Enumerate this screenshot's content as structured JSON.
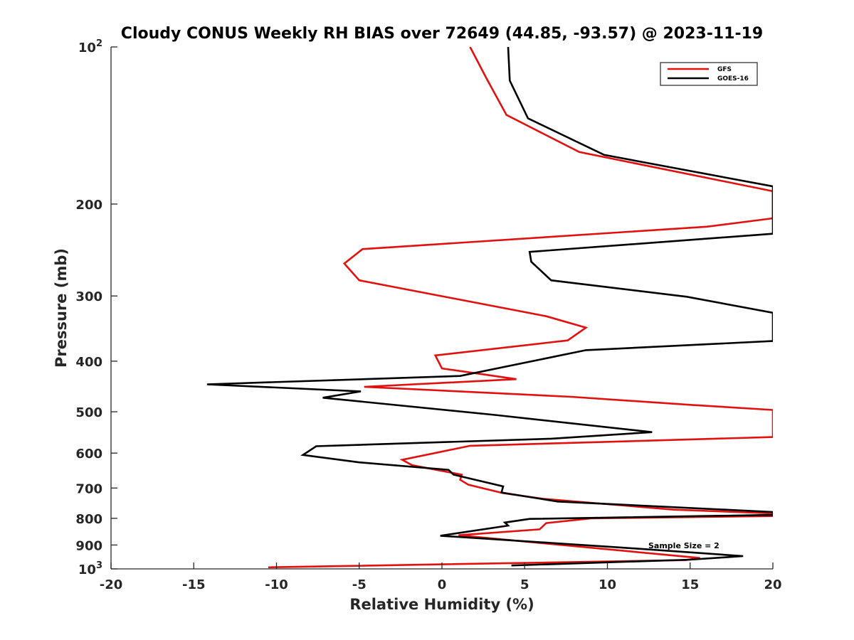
{
  "chart_data": {
    "type": "line",
    "title": "Cloudy CONUS Weekly RH BIAS over 72649 (44.85, -93.57) @ 2023-11-19",
    "xlabel": "Relative Humidity (%)",
    "ylabel": "Pressure (mb)",
    "xlim": [
      -20,
      20
    ],
    "ylim": [
      100,
      1000
    ],
    "y_scale": "log",
    "y_reversed": true,
    "grid": false,
    "legend_position": "top-right",
    "x_ticks": [
      "-20",
      "-15",
      "-10",
      "-5",
      "0",
      "5",
      "10",
      "15",
      "20"
    ],
    "y_ticks": [
      {
        "value": 100,
        "label": "10",
        "sup": "2"
      },
      {
        "value": 200,
        "label": "200",
        "sup": ""
      },
      {
        "value": 300,
        "label": "300",
        "sup": ""
      },
      {
        "value": 400,
        "label": "400",
        "sup": ""
      },
      {
        "value": 500,
        "label": "500",
        "sup": ""
      },
      {
        "value": 600,
        "label": "600",
        "sup": ""
      },
      {
        "value": 700,
        "label": "700",
        "sup": ""
      },
      {
        "value": 800,
        "label": "800",
        "sup": ""
      },
      {
        "value": 900,
        "label": "900",
        "sup": ""
      },
      {
        "value": 1000,
        "label": "10",
        "sup": "3"
      }
    ],
    "annotation": "Sample Size = 2",
    "series": [
      {
        "name": "GFS",
        "color": "#e0110f",
        "points": [
          [
            1.7,
            100
          ],
          [
            2.7,
            115
          ],
          [
            3.9,
            135
          ],
          [
            8.3,
            159
          ],
          [
            20.0,
            189
          ],
          [
            20.0,
            213
          ],
          [
            16.0,
            221
          ],
          [
            -4.8,
            244
          ],
          [
            -5.9,
            260
          ],
          [
            -5.0,
            280
          ],
          [
            6.3,
            328
          ],
          [
            8.7,
            345
          ],
          [
            7.6,
            365
          ],
          [
            -0.4,
            390
          ],
          [
            0.0,
            413
          ],
          [
            4.5,
            433
          ],
          [
            -4.7,
            448
          ],
          [
            7.8,
            468
          ],
          [
            15.0,
            485
          ],
          [
            20.0,
            496
          ],
          [
            20.0,
            559
          ],
          [
            1.7,
            581
          ],
          [
            -2.4,
            618
          ],
          [
            -1.8,
            633
          ],
          [
            1.2,
            660
          ],
          [
            1.1,
            675
          ],
          [
            1.6,
            690
          ],
          [
            3.7,
            716
          ],
          [
            6.1,
            734
          ],
          [
            14.0,
            770
          ],
          [
            20.0,
            783
          ],
          [
            20.0,
            792
          ],
          [
            9.0,
            800
          ],
          [
            6.3,
            817
          ],
          [
            5.9,
            840
          ],
          [
            1.0,
            862
          ],
          [
            15.6,
            953
          ],
          [
            14.7,
            962
          ],
          [
            -10.5,
            993
          ]
        ]
      },
      {
        "name": "GOES-16",
        "color": "#000000",
        "points": [
          [
            4.0,
            100
          ],
          [
            4.1,
            116
          ],
          [
            5.2,
            137
          ],
          [
            9.8,
            161
          ],
          [
            20.0,
            185
          ],
          [
            20.0,
            228
          ],
          [
            5.3,
            247
          ],
          [
            5.4,
            258
          ],
          [
            6.6,
            280
          ],
          [
            14.8,
            301
          ],
          [
            20.0,
            323
          ],
          [
            20.0,
            366
          ],
          [
            8.7,
            381
          ],
          [
            1.1,
            427
          ],
          [
            -14.2,
            443
          ],
          [
            -4.9,
            457
          ],
          [
            -7.2,
            470
          ],
          [
            3.2,
            507
          ],
          [
            12.7,
            547
          ],
          [
            6.6,
            563
          ],
          [
            -7.6,
            582
          ],
          [
            -8.4,
            605
          ],
          [
            -5.0,
            625
          ],
          [
            0.4,
            646
          ],
          [
            0.7,
            660
          ],
          [
            3.7,
            695
          ],
          [
            3.6,
            714
          ],
          [
            7.0,
            743
          ],
          [
            20.0,
            778
          ],
          [
            20.0,
            788
          ],
          [
            5.3,
            802
          ],
          [
            3.8,
            815
          ],
          [
            4.0,
            826
          ],
          [
            -0.1,
            864
          ],
          [
            10.8,
            910
          ],
          [
            18.2,
            945
          ],
          [
            15.0,
            960
          ],
          [
            4.2,
            985
          ]
        ]
      }
    ]
  }
}
